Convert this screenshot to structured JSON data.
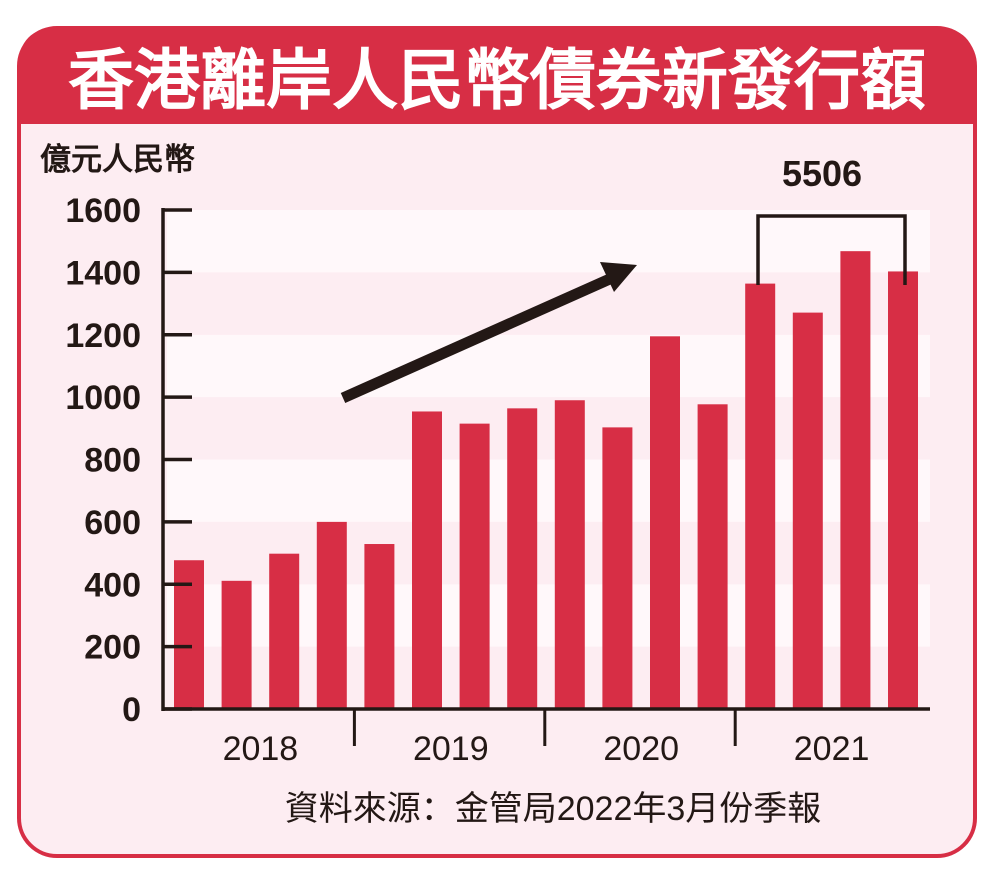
{
  "chart_data": {
    "type": "bar",
    "title": "香港離岸人民幣債券新發行額",
    "ylabel": "億元人民幣",
    "xlabel": "",
    "ylim": [
      0,
      1600
    ],
    "yticks": [
      0,
      200,
      400,
      600,
      800,
      1000,
      1200,
      1400,
      1600
    ],
    "grid": "alternating horizontal bands",
    "years": [
      "2018",
      "2019",
      "2020",
      "2021"
    ],
    "categories": [
      "2018Q1",
      "2018Q2",
      "2018Q3",
      "2018Q4",
      "2019Q1",
      "2019Q2",
      "2019Q3",
      "2019Q4",
      "2020Q1",
      "2020Q2",
      "2020Q3",
      "2020Q4",
      "2021Q1",
      "2021Q2",
      "2021Q3",
      "2021Q4"
    ],
    "values": [
      477,
      411,
      498,
      600,
      529,
      954,
      915,
      964,
      990,
      903,
      1195,
      977,
      1364,
      1271,
      1468,
      1403
    ],
    "annotation": {
      "label": "5506",
      "spans": [
        "2021Q1",
        "2021Q4"
      ]
    },
    "trend_arrow": "upward",
    "source": "資料來源：金管局2022年3月份季報"
  },
  "colors": {
    "bar": "#d72e45",
    "title_bg": "#d72e45",
    "panel_bg": "#fdedf2",
    "band_light": "#fff8fa",
    "ink": "#231815"
  }
}
